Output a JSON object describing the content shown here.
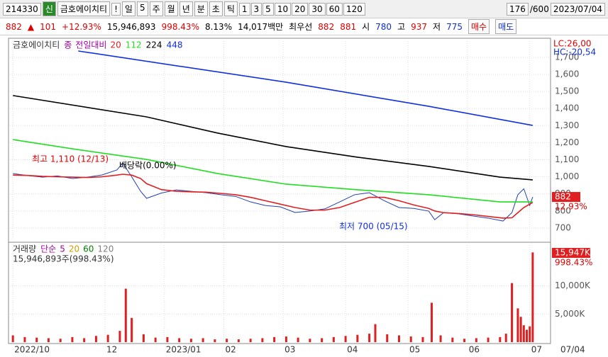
{
  "toolbar": {
    "code": "214330",
    "badge": "신",
    "name": "금호에이치티",
    "alert": "!",
    "periods": [
      "일",
      "5",
      "주",
      "월",
      "년",
      "분",
      "초",
      "틱"
    ],
    "intervals": [
      "1",
      "3",
      "5",
      "10",
      "20",
      "30",
      "60",
      "120"
    ],
    "count": "176",
    "max": "/600",
    "date": "2023/07/04"
  },
  "quote": {
    "price": "882",
    "arrow": "▲",
    "change": "101",
    "rate": "+12.93%",
    "volume": "15,946,893",
    "volume_rate": "998.43%",
    "turnover": "8.13%",
    "amount": "14,017백만",
    "best_label": "최우선",
    "ask": "882",
    "bid": "881",
    "open_label": "시",
    "open": "780",
    "high_label": "고",
    "high": "937",
    "low_label": "저",
    "low": "775",
    "buy": "매수",
    "sell": "매도"
  },
  "chart_data": [
    {
      "type": "line",
      "legend_extra": [
        "종",
        "전일대비"
      ],
      "lc": "LC:26,00",
      "hc": "HC:-20,54",
      "annotations": [
        "최고 1,110 (12/13)",
        "배당락(0.00%)",
        "최저 700 (05/15)"
      ],
      "last_price": 882,
      "last_change": "12.93%",
      "xlim": [
        -1,
        181
      ],
      "ylim": [
        625,
        1795
      ],
      "yticks": [
        700,
        800,
        900,
        {
          "value": 1000,
          "label": "1,000"
        },
        {
          "value": 1100,
          "label": "1,100"
        },
        {
          "value": 1200,
          "label": "1,200"
        },
        {
          "value": 1300,
          "label": "1,300"
        },
        {
          "value": 1400,
          "label": "1,400"
        },
        {
          "value": 1500,
          "label": "1,500"
        },
        {
          "value": 1600,
          "label": "1,600"
        },
        {
          "value": 1700,
          "label": "1,700"
        }
      ],
      "series": [
        {
          "name": "금호에이치티",
          "color": "#2040b0",
          "x": [
            0,
            5,
            10,
            15,
            20,
            25,
            30,
            35,
            37,
            40,
            43,
            45,
            50,
            55,
            60,
            65,
            70,
            75,
            80,
            85,
            90,
            95,
            100,
            105,
            110,
            115,
            120,
            125,
            130,
            135,
            140,
            142,
            145,
            150,
            155,
            160,
            165,
            168,
            170,
            172,
            174,
            175
          ],
          "values": [
            1019,
            1007,
            998,
            1005,
            990,
            998,
            1011,
            1040,
            1080,
            1000,
            915,
            874,
            905,
            923,
            915,
            907,
            895,
            885,
            853,
            832,
            824,
            791,
            800,
            812,
            853,
            895,
            907,
            860,
            820,
            815,
            799,
            749,
            790,
            783,
            770,
            758,
            741,
            790,
            895,
            930,
            832,
            882
          ]
        },
        {
          "name": "20",
          "color": "#e02020",
          "x": [
            0,
            5,
            10,
            15,
            20,
            25,
            30,
            35,
            37,
            40,
            43,
            45,
            50,
            55,
            60,
            65,
            70,
            75,
            80,
            85,
            90,
            95,
            100,
            105,
            110,
            115,
            120,
            125,
            130,
            135,
            140,
            142,
            145,
            150,
            155,
            160,
            165,
            168,
            170,
            172,
            174,
            175
          ],
          "values": [
            1010,
            1008,
            1003,
            1000,
            998,
            996,
            1000,
            1010,
            1015,
            1010,
            990,
            960,
            925,
            915,
            912,
            910,
            903,
            895,
            880,
            860,
            840,
            820,
            805,
            805,
            820,
            850,
            880,
            880,
            860,
            835,
            815,
            800,
            790,
            785,
            778,
            768,
            758,
            760,
            790,
            820,
            840,
            850
          ]
        },
        {
          "name": "112",
          "color": "#22dd22",
          "x": [
            0,
            20,
            45,
            69,
            92,
            116,
            140,
            164,
            175
          ],
          "values": [
            1218,
            1164,
            1102,
            1019,
            957,
            924,
            895,
            853,
            853
          ]
        },
        {
          "name": "224",
          "color": "#000000",
          "x": [
            0,
            45,
            69,
            92,
            116,
            140,
            164,
            175
          ],
          "values": [
            1476,
            1351,
            1256,
            1177,
            1115,
            1061,
            998,
            982
          ]
        },
        {
          "name": "448",
          "color": "#1030e0",
          "x": [
            22,
            92,
            140,
            175
          ],
          "values": [
            1737,
            1554,
            1413,
            1301
          ]
        }
      ]
    },
    {
      "type": "bar",
      "legend_extra": [
        {
          "text": "단순",
          "color": "#a000a0"
        },
        {
          "text": "5",
          "color": "#a000a0"
        },
        {
          "text": "20",
          "color": "#d0a000"
        },
        {
          "text": "60",
          "color": "#008000"
        },
        {
          "text": "120",
          "color": "#808080"
        }
      ],
      "summary": "15,946,893주(998.43%)",
      "last_label": "15,947K",
      "last_rate": "998.43%",
      "last_date": "07/04",
      "xlim": [
        -1,
        181
      ],
      "ylim": [
        0,
        17250
      ],
      "yticks": [
        {
          "value": 5000,
          "label": "5,000K"
        },
        {
          "value": 10000,
          "label": "10,000K"
        }
      ],
      "xticks": [
        {
          "value": 0,
          "label": "2022/10"
        },
        {
          "value": 31,
          "label": "12"
        },
        {
          "value": 51,
          "label": "2023/01"
        },
        {
          "value": 71,
          "label": "02"
        },
        {
          "value": 91,
          "label": "03"
        },
        {
          "value": 112,
          "label": "04"
        },
        {
          "value": 133,
          "label": "05"
        },
        {
          "value": 153,
          "label": "06"
        },
        {
          "value": 174,
          "label": "07"
        }
      ],
      "series": [
        {
          "name": "거래량",
          "color": "#e02020",
          "x": [
            0,
            4,
            8,
            12,
            16,
            20,
            24,
            28,
            32,
            36,
            38,
            40,
            44,
            48,
            52,
            56,
            60,
            64,
            68,
            72,
            76,
            80,
            84,
            88,
            92,
            96,
            100,
            104,
            108,
            112,
            116,
            120,
            122,
            126,
            130,
            134,
            138,
            141,
            144,
            148,
            152,
            156,
            160,
            164,
            166,
            168,
            170,
            171,
            172,
            173,
            174,
            175
          ],
          "values": [
            1200,
            900,
            800,
            700,
            600,
            900,
            700,
            1100,
            1300,
            2000,
            9500,
            4300,
            1400,
            800,
            900,
            700,
            600,
            700,
            500,
            600,
            500,
            600,
            700,
            900,
            1000,
            800,
            600,
            700,
            900,
            1100,
            1300,
            1500,
            3200,
            1400,
            1200,
            1000,
            900,
            7000,
            1200,
            800,
            600,
            700,
            800,
            900,
            1500,
            10500,
            6000,
            4500,
            3000,
            2200,
            2800,
            15947
          ]
        }
      ]
    }
  ]
}
